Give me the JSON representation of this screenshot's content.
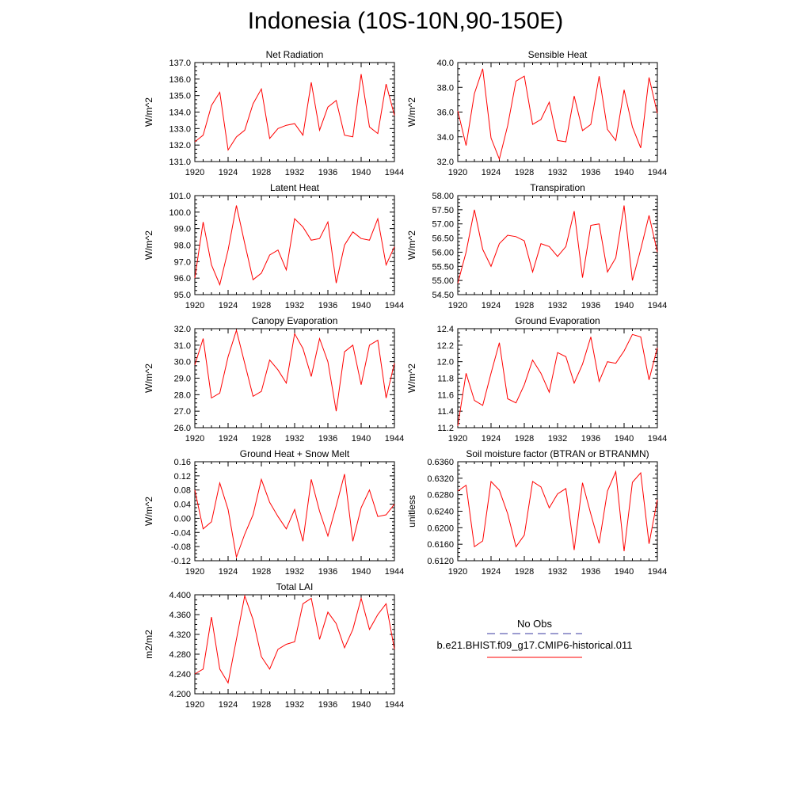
{
  "page": {
    "title": "Indonesia (10S-10N,90-150E)"
  },
  "legend": {
    "obs_label": "No Obs",
    "obs_color": "#3a3aa0",
    "model_label": "b.e21.BHIST.f09_g17.CMIP6-historical.011",
    "model_color": "#ff0000"
  },
  "chart_data": [
    {
      "type": "line",
      "title": "Net Radiation",
      "ylabel": "W/m^2",
      "x": [
        1920,
        1921,
        1922,
        1923,
        1924,
        1925,
        1926,
        1927,
        1928,
        1929,
        1930,
        1931,
        1932,
        1933,
        1934,
        1935,
        1936,
        1937,
        1938,
        1939,
        1940,
        1941,
        1942,
        1943,
        1944
      ],
      "xticks": [
        "1920",
        "1924",
        "1928",
        "1932",
        "1936",
        "1940",
        "1944"
      ],
      "ylim": [
        131.0,
        137.0
      ],
      "yticks": [
        "131.0",
        "132.0",
        "133.0",
        "134.0",
        "135.0",
        "136.0",
        "137.0"
      ],
      "series": [
        {
          "color": "#ff0000",
          "values": [
            132.2,
            132.6,
            134.4,
            135.2,
            131.7,
            132.5,
            132.9,
            134.5,
            135.4,
            132.4,
            133.0,
            133.2,
            133.3,
            132.6,
            135.8,
            132.9,
            134.3,
            134.7,
            132.6,
            132.5,
            136.3,
            133.1,
            132.7,
            135.7,
            133.8
          ]
        }
      ]
    },
    {
      "type": "line",
      "title": "Sensible Heat",
      "ylabel": "W/m^2",
      "x": [
        1920,
        1921,
        1922,
        1923,
        1924,
        1925,
        1926,
        1927,
        1928,
        1929,
        1930,
        1931,
        1932,
        1933,
        1934,
        1935,
        1936,
        1937,
        1938,
        1939,
        1940,
        1941,
        1942,
        1943,
        1944
      ],
      "xticks": [
        "1920",
        "1924",
        "1928",
        "1932",
        "1936",
        "1940",
        "1944"
      ],
      "ylim": [
        32.0,
        40.0
      ],
      "yticks": [
        "32.0",
        "34.0",
        "36.0",
        "38.0",
        "40.0"
      ],
      "series": [
        {
          "color": "#ff0000",
          "values": [
            36.1,
            33.3,
            37.5,
            39.5,
            33.9,
            32.2,
            34.9,
            38.5,
            38.9,
            35.0,
            35.4,
            36.8,
            33.7,
            33.6,
            37.3,
            34.5,
            35.0,
            38.9,
            34.6,
            33.7,
            37.8,
            34.8,
            33.1,
            38.8,
            35.9
          ]
        }
      ]
    },
    {
      "type": "line",
      "title": "Latent Heat",
      "ylabel": "W/m^2",
      "x": [
        1920,
        1921,
        1922,
        1923,
        1924,
        1925,
        1926,
        1927,
        1928,
        1929,
        1930,
        1931,
        1932,
        1933,
        1934,
        1935,
        1936,
        1937,
        1938,
        1939,
        1940,
        1941,
        1942,
        1943,
        1944
      ],
      "xticks": [
        "1920",
        "1924",
        "1928",
        "1932",
        "1936",
        "1940",
        "1944"
      ],
      "ylim": [
        95.0,
        101.0
      ],
      "yticks": [
        "95.0",
        "96.0",
        "97.0",
        "98.0",
        "99.0",
        "100.0",
        "101.0"
      ],
      "series": [
        {
          "color": "#ff0000",
          "values": [
            96.0,
            99.4,
            96.8,
            95.6,
            97.7,
            100.4,
            98.1,
            95.9,
            96.3,
            97.4,
            97.7,
            96.5,
            99.6,
            99.1,
            98.3,
            98.4,
            99.4,
            95.7,
            98.0,
            98.8,
            98.4,
            98.3,
            99.6,
            96.8,
            97.9
          ]
        }
      ]
    },
    {
      "type": "line",
      "title": "Transpiration",
      "ylabel": "W/m^2",
      "x": [
        1920,
        1921,
        1922,
        1923,
        1924,
        1925,
        1926,
        1927,
        1928,
        1929,
        1930,
        1931,
        1932,
        1933,
        1934,
        1935,
        1936,
        1937,
        1938,
        1939,
        1940,
        1941,
        1942,
        1943,
        1944
      ],
      "xticks": [
        "1920",
        "1924",
        "1928",
        "1932",
        "1936",
        "1940",
        "1944"
      ],
      "ylim": [
        54.5,
        58.0
      ],
      "yticks": [
        "54.50",
        "55.00",
        "55.50",
        "56.00",
        "56.50",
        "57.00",
        "57.50",
        "58.00"
      ],
      "series": [
        {
          "color": "#ff0000",
          "values": [
            54.9,
            56.0,
            57.5,
            56.1,
            55.5,
            56.3,
            56.6,
            56.55,
            56.4,
            55.3,
            56.3,
            56.2,
            55.85,
            56.2,
            57.45,
            55.1,
            56.95,
            57.0,
            55.3,
            55.8,
            57.65,
            55.0,
            56.1,
            57.3,
            56.0
          ]
        }
      ]
    },
    {
      "type": "line",
      "title": "Canopy Evaporation",
      "ylabel": "W/m^2",
      "x": [
        1920,
        1921,
        1922,
        1923,
        1924,
        1925,
        1926,
        1927,
        1928,
        1929,
        1930,
        1931,
        1932,
        1933,
        1934,
        1935,
        1936,
        1937,
        1938,
        1939,
        1940,
        1941,
        1942,
        1943,
        1944
      ],
      "xticks": [
        "1920",
        "1924",
        "1928",
        "1932",
        "1936",
        "1940",
        "1944"
      ],
      "ylim": [
        26.0,
        32.0
      ],
      "yticks": [
        "26.0",
        "27.0",
        "28.0",
        "29.0",
        "30.0",
        "31.0",
        "32.0"
      ],
      "series": [
        {
          "color": "#ff0000",
          "values": [
            29.8,
            31.4,
            27.8,
            28.1,
            30.3,
            31.9,
            29.9,
            27.9,
            28.2,
            30.1,
            29.5,
            28.7,
            31.7,
            30.8,
            29.1,
            31.4,
            30.0,
            27.0,
            30.6,
            31.0,
            28.6,
            31.0,
            31.3,
            27.8,
            29.9
          ]
        }
      ]
    },
    {
      "type": "line",
      "title": "Ground Evaporation",
      "ylabel": "W/m^2",
      "x": [
        1920,
        1921,
        1922,
        1923,
        1924,
        1925,
        1926,
        1927,
        1928,
        1929,
        1930,
        1931,
        1932,
        1933,
        1934,
        1935,
        1936,
        1937,
        1938,
        1939,
        1940,
        1941,
        1942,
        1943,
        1944
      ],
      "xticks": [
        "1920",
        "1924",
        "1928",
        "1932",
        "1936",
        "1940",
        "1944"
      ],
      "ylim": [
        11.2,
        12.4
      ],
      "yticks": [
        "11.2",
        "11.4",
        "11.6",
        "11.8",
        "12.0",
        "12.2",
        "12.4"
      ],
      "series": [
        {
          "color": "#ff0000",
          "values": [
            11.22,
            11.86,
            11.53,
            11.47,
            11.86,
            12.23,
            11.55,
            11.5,
            11.72,
            12.02,
            11.86,
            11.63,
            12.11,
            12.06,
            11.74,
            11.97,
            12.3,
            11.76,
            12.0,
            11.98,
            12.13,
            12.33,
            12.3,
            11.78,
            12.17
          ]
        }
      ]
    },
    {
      "type": "line",
      "title": "Ground Heat + Snow Melt",
      "ylabel": "W/m^2",
      "x": [
        1920,
        1921,
        1922,
        1923,
        1924,
        1925,
        1926,
        1927,
        1928,
        1929,
        1930,
        1931,
        1932,
        1933,
        1934,
        1935,
        1936,
        1937,
        1938,
        1939,
        1940,
        1941,
        1942,
        1943,
        1944
      ],
      "xticks": [
        "1920",
        "1924",
        "1928",
        "1932",
        "1936",
        "1940",
        "1944"
      ],
      "ylim": [
        -0.12,
        0.16
      ],
      "yticks": [
        "-0.12",
        "-0.08",
        "-0.04",
        "0.00",
        "0.04",
        "0.08",
        "0.12",
        "0.16"
      ],
      "series": [
        {
          "color": "#ff0000",
          "values": [
            0.08,
            -0.03,
            -0.01,
            0.1,
            0.025,
            -0.11,
            -0.045,
            0.01,
            0.11,
            0.045,
            0.005,
            -0.03,
            0.025,
            -0.065,
            0.11,
            0.02,
            -0.05,
            0.035,
            0.125,
            -0.065,
            0.03,
            0.08,
            0.005,
            0.01,
            0.04
          ]
        }
      ]
    },
    {
      "type": "line",
      "title": "Soil moisture factor (BTRAN or BTRANMN)",
      "ylabel": "unitless",
      "x": [
        1920,
        1921,
        1922,
        1923,
        1924,
        1925,
        1926,
        1927,
        1928,
        1929,
        1930,
        1931,
        1932,
        1933,
        1934,
        1935,
        1936,
        1937,
        1938,
        1939,
        1940,
        1941,
        1942,
        1943,
        1944
      ],
      "xticks": [
        "1920",
        "1924",
        "1928",
        "1932",
        "1936",
        "1940",
        "1944"
      ],
      "ylim": [
        0.612,
        0.636
      ],
      "yticks": [
        "0.6120",
        "0.6160",
        "0.6200",
        "0.6240",
        "0.6280",
        "0.6320",
        "0.6360"
      ],
      "series": [
        {
          "color": "#ff0000",
          "values": [
            0.6289,
            0.6303,
            0.6154,
            0.6168,
            0.6312,
            0.6291,
            0.6234,
            0.6154,
            0.6182,
            0.6312,
            0.6299,
            0.6248,
            0.6282,
            0.6295,
            0.6146,
            0.6309,
            0.6233,
            0.6162,
            0.6289,
            0.6336,
            0.6143,
            0.631,
            0.6333,
            0.6161,
            0.6268
          ]
        }
      ]
    },
    {
      "type": "line",
      "title": "Total LAI",
      "ylabel": "m2/m2",
      "x": [
        1920,
        1921,
        1922,
        1923,
        1924,
        1925,
        1926,
        1927,
        1928,
        1929,
        1930,
        1931,
        1932,
        1933,
        1934,
        1935,
        1936,
        1937,
        1938,
        1939,
        1940,
        1941,
        1942,
        1943,
        1944
      ],
      "xticks": [
        "1920",
        "1924",
        "1928",
        "1932",
        "1936",
        "1940",
        "1944"
      ],
      "ylim": [
        4.2,
        4.4
      ],
      "yticks": [
        "4.200",
        "4.240",
        "4.280",
        "4.320",
        "4.360",
        "4.400"
      ],
      "series": [
        {
          "color": "#ff0000",
          "values": [
            4.24,
            4.25,
            4.355,
            4.25,
            4.222,
            4.31,
            4.398,
            4.35,
            4.275,
            4.25,
            4.29,
            4.3,
            4.305,
            4.382,
            4.393,
            4.31,
            4.365,
            4.342,
            4.293,
            4.33,
            4.393,
            4.33,
            4.36,
            4.382,
            4.29
          ]
        }
      ]
    }
  ]
}
